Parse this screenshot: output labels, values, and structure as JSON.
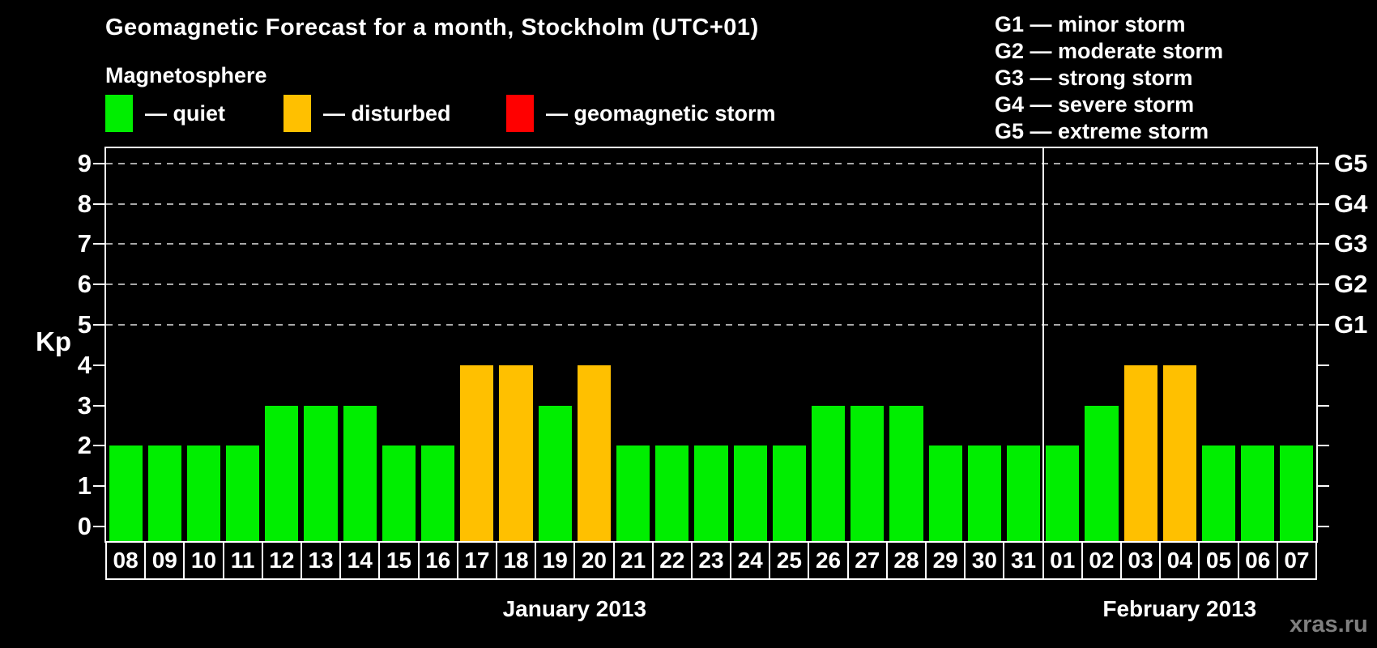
{
  "title": "Geomagnetic Forecast for a month, Stockholm (UTC+01)",
  "subtitle": "Magnetosphere",
  "legend": {
    "items": [
      {
        "key": "quiet",
        "label": "— quiet"
      },
      {
        "key": "disturbed",
        "label": "— disturbed"
      },
      {
        "key": "storm",
        "label": "— geomagnetic storm"
      }
    ]
  },
  "g_legend": {
    "items": [
      "G1 — minor storm",
      "G2 — moderate storm",
      "G3 — strong storm",
      "G4 — severe storm",
      "G5 — extreme storm"
    ]
  },
  "colors": {
    "quiet": "#00ee00",
    "disturbed": "#ffc000",
    "storm": "#ff0000",
    "gridline": "#a8a8a8",
    "axis": "#ffffff",
    "watermark_text": "#7f7f7f"
  },
  "watermark": "xras.ru",
  "chart_data": {
    "type": "bar",
    "title": "Geomagnetic Forecast for a month, Stockholm (UTC+01)",
    "ylabel": "Kp",
    "ylim": [
      0,
      9
    ],
    "yticks": [
      0,
      1,
      2,
      3,
      4,
      5,
      6,
      7,
      8,
      9
    ],
    "gridlines_at": [
      5,
      6,
      7,
      8,
      9
    ],
    "grid": "dashed horizontal at Kp 5-9 only",
    "legend_position": "top",
    "right_axis_labels": [
      {
        "value": 5,
        "label": "G1"
      },
      {
        "value": 6,
        "label": "G2"
      },
      {
        "value": 7,
        "label": "G3"
      },
      {
        "value": 8,
        "label": "G4"
      },
      {
        "value": 9,
        "label": "G5"
      }
    ],
    "months": [
      {
        "label": "January 2013",
        "days": [
          {
            "day": "08",
            "kp": 2,
            "status": "quiet"
          },
          {
            "day": "09",
            "kp": 2,
            "status": "quiet"
          },
          {
            "day": "10",
            "kp": 2,
            "status": "quiet"
          },
          {
            "day": "11",
            "kp": 2,
            "status": "quiet"
          },
          {
            "day": "12",
            "kp": 3,
            "status": "quiet"
          },
          {
            "day": "13",
            "kp": 3,
            "status": "quiet"
          },
          {
            "day": "14",
            "kp": 3,
            "status": "quiet"
          },
          {
            "day": "15",
            "kp": 2,
            "status": "quiet"
          },
          {
            "day": "16",
            "kp": 2,
            "status": "quiet"
          },
          {
            "day": "17",
            "kp": 4,
            "status": "disturbed"
          },
          {
            "day": "18",
            "kp": 4,
            "status": "disturbed"
          },
          {
            "day": "19",
            "kp": 3,
            "status": "quiet"
          },
          {
            "day": "20",
            "kp": 4,
            "status": "disturbed"
          },
          {
            "day": "21",
            "kp": 2,
            "status": "quiet"
          },
          {
            "day": "22",
            "kp": 2,
            "status": "quiet"
          },
          {
            "day": "23",
            "kp": 2,
            "status": "quiet"
          },
          {
            "day": "24",
            "kp": 2,
            "status": "quiet"
          },
          {
            "day": "25",
            "kp": 2,
            "status": "quiet"
          },
          {
            "day": "26",
            "kp": 3,
            "status": "quiet"
          },
          {
            "day": "27",
            "kp": 3,
            "status": "quiet"
          },
          {
            "day": "28",
            "kp": 3,
            "status": "quiet"
          },
          {
            "day": "29",
            "kp": 2,
            "status": "quiet"
          },
          {
            "day": "30",
            "kp": 2,
            "status": "quiet"
          },
          {
            "day": "31",
            "kp": 2,
            "status": "quiet"
          }
        ]
      },
      {
        "label": "February 2013",
        "days": [
          {
            "day": "01",
            "kp": 2,
            "status": "quiet"
          },
          {
            "day": "02",
            "kp": 3,
            "status": "quiet"
          },
          {
            "day": "03",
            "kp": 4,
            "status": "disturbed"
          },
          {
            "day": "04",
            "kp": 4,
            "status": "disturbed"
          },
          {
            "day": "05",
            "kp": 2,
            "status": "quiet"
          },
          {
            "day": "06",
            "kp": 2,
            "status": "quiet"
          },
          {
            "day": "07",
            "kp": 2,
            "status": "quiet"
          }
        ]
      }
    ]
  }
}
